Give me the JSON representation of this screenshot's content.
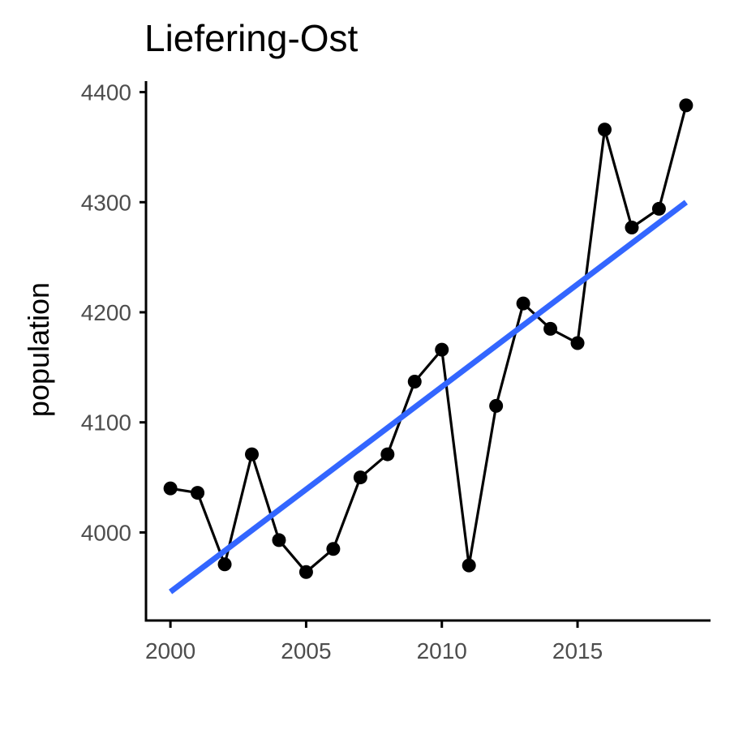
{
  "chart_data": {
    "type": "line",
    "title": "Liefering-Ost",
    "xlabel": "",
    "ylabel": "population",
    "xlim": [
      1999.1,
      2019.9
    ],
    "ylim": [
      3920,
      4410
    ],
    "x_ticks": [
      2000,
      2005,
      2010,
      2015
    ],
    "y_ticks": [
      4000,
      4100,
      4200,
      4300,
      4400
    ],
    "grid": false,
    "legend": "none",
    "series": [
      {
        "x": [
          2000,
          2001,
          2002,
          2003,
          2004,
          2005,
          2006,
          2007,
          2008,
          2009,
          2010,
          2011,
          2012,
          2013,
          2014,
          2015,
          2016,
          2017,
          2018,
          2019
        ],
        "values": [
          4040,
          4036,
          3971,
          4071,
          3993,
          3964,
          3985,
          4050,
          4071,
          4137,
          4166,
          3970,
          4115,
          4208,
          4185,
          4172,
          4366,
          4277,
          4294,
          4388
        ],
        "color": "#000000"
      }
    ],
    "trend_line": {
      "method": "linear fit",
      "x": [
        2000,
        2019
      ],
      "values": [
        3946,
        4300
      ],
      "color": "#3366ff"
    }
  }
}
